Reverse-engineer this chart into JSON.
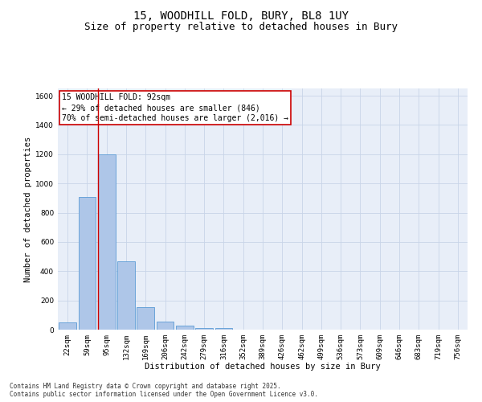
{
  "title_line1": "15, WOODHILL FOLD, BURY, BL8 1UY",
  "title_line2": "Size of property relative to detached houses in Bury",
  "xlabel": "Distribution of detached houses by size in Bury",
  "ylabel": "Number of detached properties",
  "categories": [
    "22sqm",
    "59sqm",
    "95sqm",
    "132sqm",
    "169sqm",
    "206sqm",
    "242sqm",
    "279sqm",
    "316sqm",
    "352sqm",
    "389sqm",
    "426sqm",
    "462sqm",
    "499sqm",
    "536sqm",
    "573sqm",
    "609sqm",
    "646sqm",
    "683sqm",
    "719sqm",
    "756sqm"
  ],
  "values": [
    50,
    910,
    1200,
    470,
    155,
    55,
    28,
    12,
    10,
    0,
    0,
    0,
    0,
    0,
    0,
    0,
    0,
    0,
    0,
    0,
    0
  ],
  "bar_color": "#aec6e8",
  "bar_edge_color": "#5b9bd5",
  "vline_index": 2,
  "vline_color": "#cc0000",
  "annotation_text": "15 WOODHILL FOLD: 92sqm\n← 29% of detached houses are smaller (846)\n70% of semi-detached houses are larger (2,016) →",
  "annotation_box_color": "#ffffff",
  "annotation_border_color": "#cc0000",
  "ylim": [
    0,
    1650
  ],
  "yticks": [
    0,
    200,
    400,
    600,
    800,
    1000,
    1200,
    1400,
    1600
  ],
  "grid_color": "#c8d4e8",
  "background_color": "#e8eef8",
  "footer_line1": "Contains HM Land Registry data © Crown copyright and database right 2025.",
  "footer_line2": "Contains public sector information licensed under the Open Government Licence v3.0.",
  "title_fontsize": 10,
  "subtitle_fontsize": 9,
  "label_fontsize": 7.5,
  "tick_fontsize": 6.5,
  "annotation_fontsize": 7,
  "footer_fontsize": 5.5
}
